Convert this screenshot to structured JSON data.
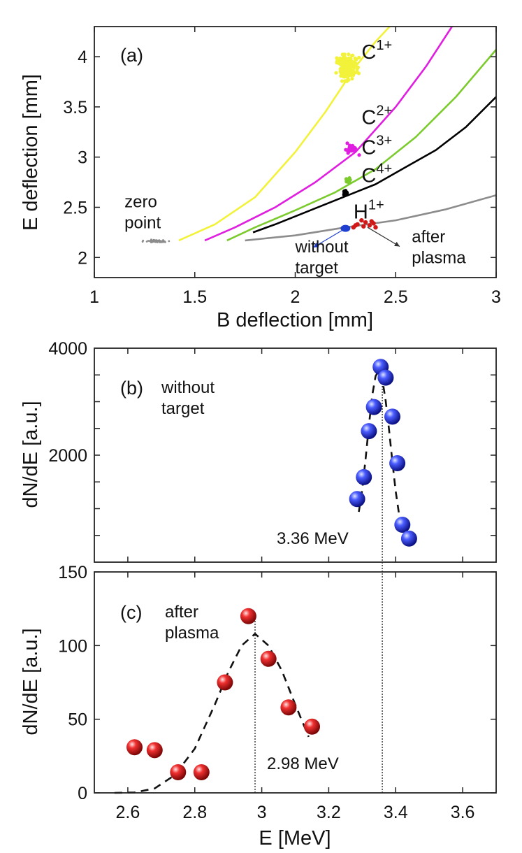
{
  "chart_data": [
    {
      "panel": "(a)",
      "type": "scatter",
      "xlabel": "B deflection [mm]",
      "ylabel": "E deflection [mm]",
      "xlim": [
        1,
        3
      ],
      "ylim": [
        1.8,
        4.3
      ],
      "xticks": [
        "1",
        "1.5",
        "2",
        "2.5",
        "3"
      ],
      "yticks": [
        "2",
        "2.5",
        "3",
        "3.5",
        "4"
      ],
      "grid": false,
      "colors": {
        "c1": "#f2f23a",
        "c2": "#e01ee0",
        "c3": "#7ccb2e",
        "c4": "#000000",
        "h1": "#8c8c8c",
        "proton_points": "#d01818",
        "blue_spot": "#1f3fd0",
        "zero_point": "#8c8c8c"
      },
      "ions": [
        {
          "base": "C",
          "charge": "1+",
          "label_at": [
            2.33,
            3.98
          ]
        },
        {
          "base": "C",
          "charge": "2+",
          "label_at": [
            2.33,
            3.33
          ]
        },
        {
          "base": "C",
          "charge": "3+",
          "label_at": [
            2.33,
            3.03
          ]
        },
        {
          "base": "C",
          "charge": "4+",
          "label_at": [
            2.33,
            2.75
          ]
        },
        {
          "base": "H",
          "charge": "1+",
          "label_at": [
            2.29,
            2.39
          ]
        }
      ],
      "series": [
        {
          "name": "C1+ parabola",
          "color_key": "c1",
          "x": [
            1.42,
            1.6,
            1.8,
            2.0,
            2.15,
            2.3,
            2.4,
            2.47
          ],
          "y": [
            2.17,
            2.33,
            2.6,
            3.05,
            3.45,
            3.9,
            4.15,
            4.3
          ]
        },
        {
          "name": "C2+ parabola",
          "color_key": "c2",
          "x": [
            1.55,
            1.7,
            1.9,
            2.1,
            2.3,
            2.5,
            2.65,
            2.78
          ],
          "y": [
            2.17,
            2.3,
            2.5,
            2.75,
            3.05,
            3.5,
            3.9,
            4.3
          ]
        },
        {
          "name": "C3+ parabola",
          "color_key": "c3",
          "x": [
            1.66,
            1.8,
            2.0,
            2.2,
            2.4,
            2.6,
            2.8,
            3.0
          ],
          "y": [
            2.17,
            2.3,
            2.47,
            2.65,
            2.88,
            3.2,
            3.6,
            4.07
          ]
        },
        {
          "name": "C4+ parabola",
          "color_key": "c4",
          "x": [
            1.79,
            1.9,
            2.05,
            2.2,
            2.4,
            2.55,
            2.7,
            2.85,
            3.0
          ],
          "y": [
            2.25,
            2.33,
            2.45,
            2.57,
            2.73,
            2.9,
            3.07,
            3.3,
            3.6
          ]
        },
        {
          "name": "H1+ parabola",
          "color_key": "h1",
          "x": [
            1.75,
            2.0,
            2.25,
            2.5,
            2.75,
            3.0
          ],
          "y": [
            2.17,
            2.22,
            2.3,
            2.37,
            2.48,
            2.62
          ]
        },
        {
          "name": "C1+ spot",
          "color_key": "c1",
          "x": [
            2.26
          ],
          "y": [
            3.9
          ],
          "kind": "cluster",
          "spread": [
            0.05,
            0.13
          ]
        },
        {
          "name": "C2+ spot",
          "color_key": "c2",
          "x": [
            2.28
          ],
          "y": [
            3.08
          ],
          "kind": "cluster",
          "spread": [
            0.03,
            0.05
          ]
        },
        {
          "name": "C3+ spot",
          "color_key": "c3",
          "x": [
            2.265
          ],
          "y": [
            2.77
          ],
          "kind": "cluster",
          "spread": [
            0.012,
            0.02
          ]
        },
        {
          "name": "C4+ spot",
          "color_key": "c4",
          "x": [
            2.25
          ],
          "y": [
            2.64
          ],
          "kind": "cluster",
          "spread": [
            0.008,
            0.025
          ]
        },
        {
          "name": "zero point",
          "color_key": "zero_point",
          "x": [
            1.3
          ],
          "y": [
            2.16
          ],
          "kind": "cluster",
          "spread": [
            0.05,
            0.015
          ]
        },
        {
          "name": "H1+ after plasma",
          "color_key": "proton_points",
          "x": [
            2.29,
            2.31,
            2.33,
            2.35,
            2.37,
            2.39,
            2.4,
            2.34,
            2.3,
            2.38
          ],
          "y": [
            2.3,
            2.33,
            2.37,
            2.35,
            2.32,
            2.34,
            2.3,
            2.31,
            2.32,
            2.36
          ]
        },
        {
          "name": "without target spot",
          "color_key": "blue_spot",
          "x": [
            2.25
          ],
          "y": [
            2.29
          ]
        }
      ],
      "annotations": [
        {
          "lines": [
            "zero",
            "point"
          ],
          "at": [
            1.15,
            2.5
          ]
        },
        {
          "lines": [
            "without",
            "target"
          ],
          "at": [
            2.0,
            2.05
          ]
        },
        {
          "lines": [
            "after",
            "plasma"
          ],
          "at": [
            2.58,
            2.15
          ]
        }
      ],
      "arrows": [
        {
          "from": [
            2.25,
            2.29
          ],
          "to": [
            2.09,
            2.1
          ],
          "color_key": "blue_spot"
        },
        {
          "from": [
            2.36,
            2.3
          ],
          "to": [
            2.52,
            2.11
          ],
          "color_key": "c4"
        }
      ]
    },
    {
      "panel": "(b)",
      "type": "scatter",
      "xlabel": "",
      "ylabel": "dN/dE  [a.u.]",
      "xlim": [
        2.5,
        3.7
      ],
      "ylim": [
        0,
        4000
      ],
      "yticks": [
        "2000",
        "4000"
      ],
      "color": "#1e2fd8",
      "labels": [
        "without",
        "target"
      ],
      "x": [
        3.285,
        3.305,
        3.32,
        3.335,
        3.355,
        3.37,
        3.39,
        3.405,
        3.42,
        3.44
      ],
      "values": [
        1180,
        1590,
        2450,
        2900,
        3650,
        3450,
        2720,
        1850,
        700,
        440
      ],
      "fit_x": [
        3.29,
        3.3,
        3.31,
        3.32,
        3.33,
        3.34,
        3.35,
        3.36,
        3.37,
        3.38,
        3.39,
        3.4,
        3.41,
        3.42
      ],
      "fit_y": [
        940,
        1350,
        1920,
        2550,
        3120,
        3480,
        3580,
        3420,
        3020,
        2480,
        1880,
        1330,
        900,
        600
      ],
      "peak": 3.36,
      "peak_label": "3.36 MeV"
    },
    {
      "panel": "(c)",
      "type": "scatter",
      "xlabel": "E [MeV]",
      "ylabel": "dN/dE  [a.u.]",
      "xlim": [
        2.5,
        3.7
      ],
      "ylim": [
        0,
        150
      ],
      "xticks": [
        "2.6",
        "2.8",
        "3",
        "3.2",
        "3.4",
        "3.6"
      ],
      "yticks": [
        "0",
        "50",
        "100",
        "150"
      ],
      "color": "#d81b1b",
      "labels": [
        "after",
        "plasma"
      ],
      "x": [
        2.62,
        2.68,
        2.75,
        2.82,
        2.89,
        2.96,
        3.02,
        3.08,
        3.15
      ],
      "values": [
        31,
        29,
        14,
        14,
        75,
        120,
        91,
        58,
        45
      ],
      "fit_x": [
        2.56,
        2.62,
        2.68,
        2.74,
        2.8,
        2.86,
        2.9,
        2.94,
        2.98,
        3.02,
        3.06,
        3.1,
        3.14
      ],
      "fit_y": [
        0,
        0.3,
        3,
        12,
        30,
        60,
        82,
        100,
        108,
        100,
        83,
        60,
        38
      ],
      "peak": 2.98,
      "peak_label": "2.98 MeV"
    }
  ]
}
